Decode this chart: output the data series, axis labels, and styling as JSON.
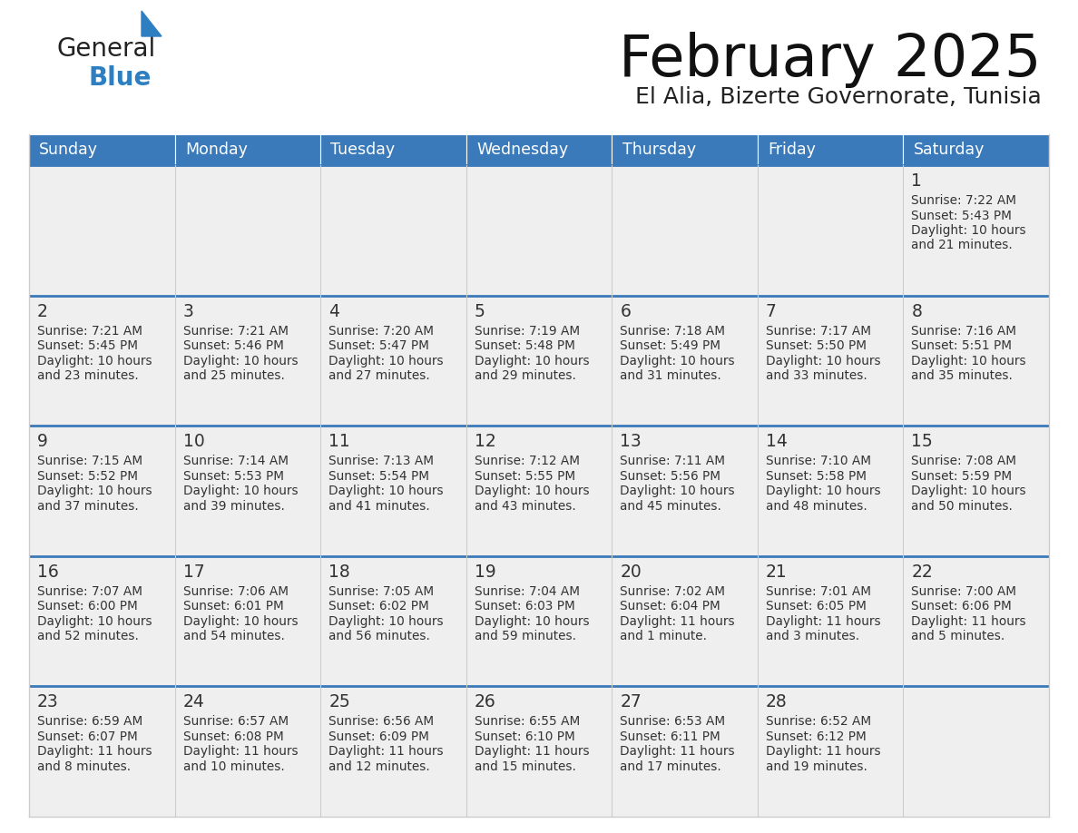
{
  "title": "February 2025",
  "subtitle": "El Alia, Bizerte Governorate, Tunisia",
  "header_bg": "#3a7aba",
  "header_text": "#ffffff",
  "cell_bg": "#eeeeee",
  "row_sep_color": "#3a7aba",
  "cell_border_color": "#cccccc",
  "day_names": [
    "Sunday",
    "Monday",
    "Tuesday",
    "Wednesday",
    "Thursday",
    "Friday",
    "Saturday"
  ],
  "days": [
    {
      "day": 1,
      "col": 6,
      "row": 0,
      "sunrise": "7:22 AM",
      "sunset": "5:43 PM",
      "daylight_line1": "Daylight: 10 hours",
      "daylight_line2": "and 21 minutes."
    },
    {
      "day": 2,
      "col": 0,
      "row": 1,
      "sunrise": "7:21 AM",
      "sunset": "5:45 PM",
      "daylight_line1": "Daylight: 10 hours",
      "daylight_line2": "and 23 minutes."
    },
    {
      "day": 3,
      "col": 1,
      "row": 1,
      "sunrise": "7:21 AM",
      "sunset": "5:46 PM",
      "daylight_line1": "Daylight: 10 hours",
      "daylight_line2": "and 25 minutes."
    },
    {
      "day": 4,
      "col": 2,
      "row": 1,
      "sunrise": "7:20 AM",
      "sunset": "5:47 PM",
      "daylight_line1": "Daylight: 10 hours",
      "daylight_line2": "and 27 minutes."
    },
    {
      "day": 5,
      "col": 3,
      "row": 1,
      "sunrise": "7:19 AM",
      "sunset": "5:48 PM",
      "daylight_line1": "Daylight: 10 hours",
      "daylight_line2": "and 29 minutes."
    },
    {
      "day": 6,
      "col": 4,
      "row": 1,
      "sunrise": "7:18 AM",
      "sunset": "5:49 PM",
      "daylight_line1": "Daylight: 10 hours",
      "daylight_line2": "and 31 minutes."
    },
    {
      "day": 7,
      "col": 5,
      "row": 1,
      "sunrise": "7:17 AM",
      "sunset": "5:50 PM",
      "daylight_line1": "Daylight: 10 hours",
      "daylight_line2": "and 33 minutes."
    },
    {
      "day": 8,
      "col": 6,
      "row": 1,
      "sunrise": "7:16 AM",
      "sunset": "5:51 PM",
      "daylight_line1": "Daylight: 10 hours",
      "daylight_line2": "and 35 minutes."
    },
    {
      "day": 9,
      "col": 0,
      "row": 2,
      "sunrise": "7:15 AM",
      "sunset": "5:52 PM",
      "daylight_line1": "Daylight: 10 hours",
      "daylight_line2": "and 37 minutes."
    },
    {
      "day": 10,
      "col": 1,
      "row": 2,
      "sunrise": "7:14 AM",
      "sunset": "5:53 PM",
      "daylight_line1": "Daylight: 10 hours",
      "daylight_line2": "and 39 minutes."
    },
    {
      "day": 11,
      "col": 2,
      "row": 2,
      "sunrise": "7:13 AM",
      "sunset": "5:54 PM",
      "daylight_line1": "Daylight: 10 hours",
      "daylight_line2": "and 41 minutes."
    },
    {
      "day": 12,
      "col": 3,
      "row": 2,
      "sunrise": "7:12 AM",
      "sunset": "5:55 PM",
      "daylight_line1": "Daylight: 10 hours",
      "daylight_line2": "and 43 minutes."
    },
    {
      "day": 13,
      "col": 4,
      "row": 2,
      "sunrise": "7:11 AM",
      "sunset": "5:56 PM",
      "daylight_line1": "Daylight: 10 hours",
      "daylight_line2": "and 45 minutes."
    },
    {
      "day": 14,
      "col": 5,
      "row": 2,
      "sunrise": "7:10 AM",
      "sunset": "5:58 PM",
      "daylight_line1": "Daylight: 10 hours",
      "daylight_line2": "and 48 minutes."
    },
    {
      "day": 15,
      "col": 6,
      "row": 2,
      "sunrise": "7:08 AM",
      "sunset": "5:59 PM",
      "daylight_line1": "Daylight: 10 hours",
      "daylight_line2": "and 50 minutes."
    },
    {
      "day": 16,
      "col": 0,
      "row": 3,
      "sunrise": "7:07 AM",
      "sunset": "6:00 PM",
      "daylight_line1": "Daylight: 10 hours",
      "daylight_line2": "and 52 minutes."
    },
    {
      "day": 17,
      "col": 1,
      "row": 3,
      "sunrise": "7:06 AM",
      "sunset": "6:01 PM",
      "daylight_line1": "Daylight: 10 hours",
      "daylight_line2": "and 54 minutes."
    },
    {
      "day": 18,
      "col": 2,
      "row": 3,
      "sunrise": "7:05 AM",
      "sunset": "6:02 PM",
      "daylight_line1": "Daylight: 10 hours",
      "daylight_line2": "and 56 minutes."
    },
    {
      "day": 19,
      "col": 3,
      "row": 3,
      "sunrise": "7:04 AM",
      "sunset": "6:03 PM",
      "daylight_line1": "Daylight: 10 hours",
      "daylight_line2": "and 59 minutes."
    },
    {
      "day": 20,
      "col": 4,
      "row": 3,
      "sunrise": "7:02 AM",
      "sunset": "6:04 PM",
      "daylight_line1": "Daylight: 11 hours",
      "daylight_line2": "and 1 minute."
    },
    {
      "day": 21,
      "col": 5,
      "row": 3,
      "sunrise": "7:01 AM",
      "sunset": "6:05 PM",
      "daylight_line1": "Daylight: 11 hours",
      "daylight_line2": "and 3 minutes."
    },
    {
      "day": 22,
      "col": 6,
      "row": 3,
      "sunrise": "7:00 AM",
      "sunset": "6:06 PM",
      "daylight_line1": "Daylight: 11 hours",
      "daylight_line2": "and 5 minutes."
    },
    {
      "day": 23,
      "col": 0,
      "row": 4,
      "sunrise": "6:59 AM",
      "sunset": "6:07 PM",
      "daylight_line1": "Daylight: 11 hours",
      "daylight_line2": "and 8 minutes."
    },
    {
      "day": 24,
      "col": 1,
      "row": 4,
      "sunrise": "6:57 AM",
      "sunset": "6:08 PM",
      "daylight_line1": "Daylight: 11 hours",
      "daylight_line2": "and 10 minutes."
    },
    {
      "day": 25,
      "col": 2,
      "row": 4,
      "sunrise": "6:56 AM",
      "sunset": "6:09 PM",
      "daylight_line1": "Daylight: 11 hours",
      "daylight_line2": "and 12 minutes."
    },
    {
      "day": 26,
      "col": 3,
      "row": 4,
      "sunrise": "6:55 AM",
      "sunset": "6:10 PM",
      "daylight_line1": "Daylight: 11 hours",
      "daylight_line2": "and 15 minutes."
    },
    {
      "day": 27,
      "col": 4,
      "row": 4,
      "sunrise": "6:53 AM",
      "sunset": "6:11 PM",
      "daylight_line1": "Daylight: 11 hours",
      "daylight_line2": "and 17 minutes."
    },
    {
      "day": 28,
      "col": 5,
      "row": 4,
      "sunrise": "6:52 AM",
      "sunset": "6:12 PM",
      "daylight_line1": "Daylight: 11 hours",
      "daylight_line2": "and 19 minutes."
    }
  ],
  "num_rows": 5,
  "num_cols": 7
}
